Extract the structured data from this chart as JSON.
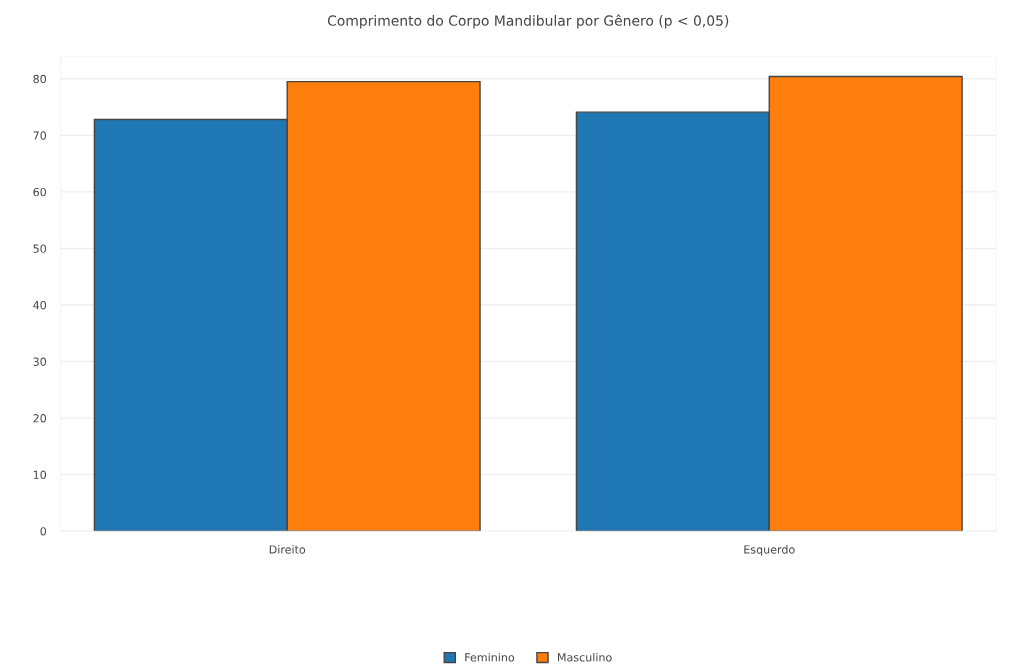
{
  "chart_data": {
    "type": "bar",
    "title": "Comprimento do Corpo Mandibular por Gênero (p < 0,05)",
    "categories": [
      "Direito",
      "Esquerdo"
    ],
    "series": [
      {
        "name": "Feminino",
        "color": "#1f77b4",
        "values": [
          72.8,
          74.1
        ]
      },
      {
        "name": "Masculino",
        "color": "#ff7f0e",
        "values": [
          79.5,
          80.4
        ]
      }
    ],
    "ylim": [
      0,
      84
    ],
    "yticks": [
      0,
      10,
      20,
      30,
      40,
      50,
      60,
      70,
      80
    ],
    "grid": "y",
    "legend": "bottom"
  }
}
